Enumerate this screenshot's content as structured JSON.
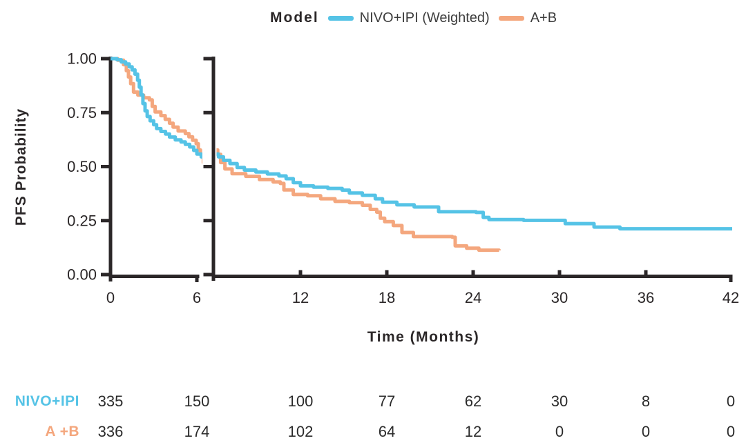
{
  "legend": {
    "title": "Model",
    "items": [
      {
        "label": "NIVO+IPI (Weighted)",
        "color": "#55C3E6"
      },
      {
        "label": "A+B",
        "color": "#F4A77E"
      }
    ]
  },
  "axes": {
    "y_label": "PFS Probability",
    "x_label": "Time (Months)",
    "y_ticks": [
      {
        "value": 1.0,
        "label": "1.00"
      },
      {
        "value": 0.75,
        "label": "0.75"
      },
      {
        "value": 0.5,
        "label": "0.50"
      },
      {
        "value": 0.25,
        "label": "0.25"
      },
      {
        "value": 0.0,
        "label": "0.00"
      }
    ],
    "x_ticks": [
      0,
      6,
      12,
      18,
      24,
      30,
      36,
      42
    ]
  },
  "chart_data": {
    "type": "line",
    "subtype": "kaplan_meier_step",
    "title": "",
    "xlabel": "Time (Months)",
    "ylabel": "PFS Probability",
    "xlim": [
      0,
      42
    ],
    "ylim": [
      0,
      1
    ],
    "x_ticks": [
      0,
      6,
      12,
      18,
      24,
      30,
      36,
      42
    ],
    "y_ticks": [
      0,
      0.25,
      0.5,
      0.75,
      1
    ],
    "grid": false,
    "legend_position": "top",
    "axis_break_x": {
      "left_panel_range": [
        0,
        6.4
      ],
      "right_panel_start": 6.15
    },
    "series": [
      {
        "name": "NIVO+IPI (Weighted)",
        "color": "#55C3E6",
        "points": [
          [
            0,
            1.0
          ],
          [
            0.45,
            0.995
          ],
          [
            0.75,
            0.985
          ],
          [
            1.05,
            0.975
          ],
          [
            1.3,
            0.962
          ],
          [
            1.5,
            0.948
          ],
          [
            1.7,
            0.928
          ],
          [
            1.88,
            0.9
          ],
          [
            2.0,
            0.868
          ],
          [
            2.12,
            0.832
          ],
          [
            2.25,
            0.792
          ],
          [
            2.4,
            0.758
          ],
          [
            2.55,
            0.732
          ],
          [
            2.75,
            0.712
          ],
          [
            3.0,
            0.694
          ],
          [
            3.2,
            0.676
          ],
          [
            3.5,
            0.663
          ],
          [
            3.82,
            0.651
          ],
          [
            4.1,
            0.637
          ],
          [
            4.5,
            0.624
          ],
          [
            4.9,
            0.614
          ],
          [
            5.2,
            0.603
          ],
          [
            5.5,
            0.591
          ],
          [
            5.78,
            0.575
          ],
          [
            6.0,
            0.558
          ],
          [
            6.3,
            0.545
          ],
          [
            6.65,
            0.529
          ],
          [
            7.1,
            0.514
          ],
          [
            7.6,
            0.496
          ],
          [
            8.1,
            0.484
          ],
          [
            8.9,
            0.475
          ],
          [
            9.7,
            0.466
          ],
          [
            10.5,
            0.457
          ],
          [
            11.0,
            0.444
          ],
          [
            11.5,
            0.426
          ],
          [
            12.0,
            0.411
          ],
          [
            12.9,
            0.405
          ],
          [
            13.9,
            0.399
          ],
          [
            14.9,
            0.391
          ],
          [
            15.4,
            0.378
          ],
          [
            16.3,
            0.367
          ],
          [
            17.2,
            0.351
          ],
          [
            17.7,
            0.335
          ],
          [
            18.7,
            0.323
          ],
          [
            19.9,
            0.313
          ],
          [
            21.6,
            0.291
          ],
          [
            24.2,
            0.288
          ],
          [
            24.7,
            0.265
          ],
          [
            25.1,
            0.255
          ],
          [
            27.5,
            0.251
          ],
          [
            30.4,
            0.236
          ],
          [
            32.4,
            0.22
          ],
          [
            34.2,
            0.212
          ],
          [
            42,
            0.212
          ]
        ]
      },
      {
        "name": "A+B",
        "color": "#F4A77E",
        "points": [
          [
            0,
            1.0
          ],
          [
            0.5,
            0.993
          ],
          [
            0.9,
            0.972
          ],
          [
            1.1,
            0.944
          ],
          [
            1.25,
            0.915
          ],
          [
            1.4,
            0.884
          ],
          [
            1.6,
            0.845
          ],
          [
            1.9,
            0.831
          ],
          [
            2.3,
            0.819
          ],
          [
            2.7,
            0.809
          ],
          [
            2.9,
            0.779
          ],
          [
            3.1,
            0.753
          ],
          [
            3.5,
            0.736
          ],
          [
            3.8,
            0.719
          ],
          [
            4.1,
            0.701
          ],
          [
            4.35,
            0.683
          ],
          [
            4.7,
            0.665
          ],
          [
            5.2,
            0.653
          ],
          [
            5.45,
            0.638
          ],
          [
            5.7,
            0.622
          ],
          [
            5.95,
            0.606
          ],
          [
            6.1,
            0.577
          ],
          [
            6.25,
            0.557
          ],
          [
            6.45,
            0.519
          ],
          [
            6.75,
            0.489
          ],
          [
            7.25,
            0.467
          ],
          [
            8.2,
            0.455
          ],
          [
            9.15,
            0.44
          ],
          [
            10.1,
            0.429
          ],
          [
            10.6,
            0.422
          ],
          [
            10.85,
            0.392
          ],
          [
            11.5,
            0.371
          ],
          [
            12.5,
            0.365
          ],
          [
            13.4,
            0.351
          ],
          [
            14.4,
            0.339
          ],
          [
            15.4,
            0.333
          ],
          [
            16.3,
            0.321
          ],
          [
            16.85,
            0.302
          ],
          [
            17.3,
            0.289
          ],
          [
            17.55,
            0.261
          ],
          [
            17.85,
            0.245
          ],
          [
            18.45,
            0.227
          ],
          [
            19.05,
            0.195
          ],
          [
            19.85,
            0.176
          ],
          [
            22.55,
            0.173
          ],
          [
            22.75,
            0.133
          ],
          [
            23.55,
            0.122
          ],
          [
            24.4,
            0.113
          ],
          [
            25.8,
            0.112
          ]
        ]
      }
    ]
  },
  "risk_table": {
    "times": [
      0,
      6,
      12,
      18,
      24,
      30,
      36,
      42
    ],
    "rows": [
      {
        "label": "NIVO+IPI",
        "color": "#55C3E6",
        "values": [
          335,
          150,
          100,
          77,
          62,
          30,
          8,
          0
        ]
      },
      {
        "label": "A +B",
        "color": "#F4A77E",
        "values": [
          336,
          174,
          102,
          64,
          12,
          0,
          0,
          0
        ]
      }
    ]
  }
}
